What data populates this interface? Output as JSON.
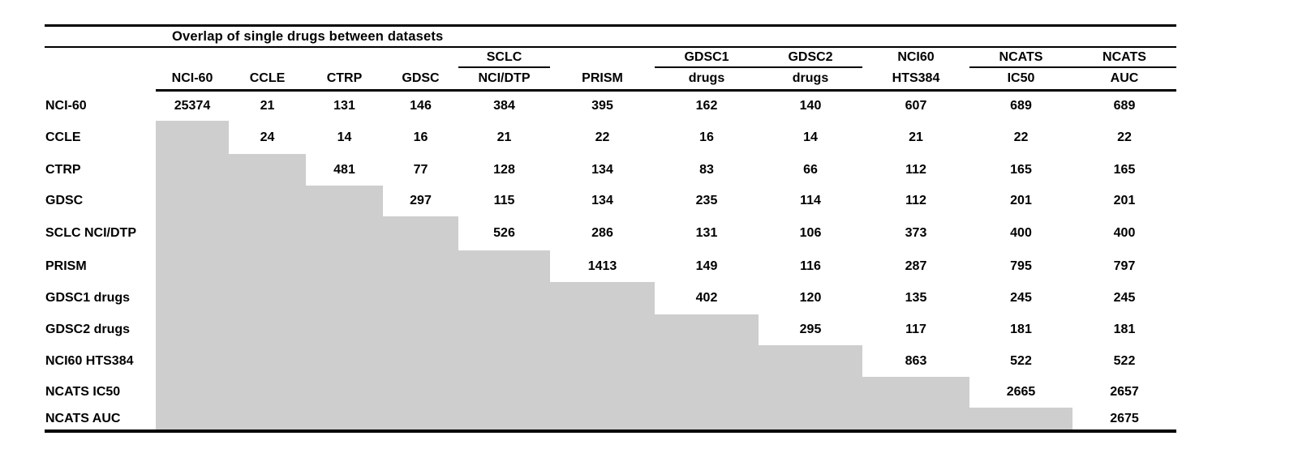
{
  "title": "Overlap of single drugs between datasets",
  "colors": {
    "shaded_cell": "#cfcecf",
    "line": "#000000",
    "text": "#000000",
    "background": "#ffffff"
  },
  "table": {
    "columns": [
      {
        "line1": "",
        "line2": "NCI-60"
      },
      {
        "line1": "",
        "line2": "CCLE"
      },
      {
        "line1": "",
        "line2": "CTRP"
      },
      {
        "line1": "",
        "line2": "GDSC"
      },
      {
        "line1": "SCLC",
        "line2": "NCI/DTP"
      },
      {
        "line1": "",
        "line2": "PRISM"
      },
      {
        "line1": "GDSC1",
        "line2": "drugs"
      },
      {
        "line1": "GDSC2",
        "line2": "drugs"
      },
      {
        "line1": "NCI60",
        "line2": "HTS384"
      },
      {
        "line1": "NCATS",
        "line2": "IC50"
      },
      {
        "line1": "NCATS",
        "line2": "AUC"
      }
    ],
    "group_underlines": [
      {
        "from": 4,
        "to": 4
      },
      {
        "from": 6,
        "to": 7
      },
      {
        "from": 9,
        "to": 10
      }
    ],
    "rows": [
      {
        "label": "NCI-60",
        "values": [
          "25374",
          "21",
          "131",
          "146",
          "384",
          "395",
          "162",
          "140",
          "607",
          "689",
          "689"
        ]
      },
      {
        "label": "CCLE",
        "values": [
          null,
          "24",
          "14",
          "16",
          "21",
          "22",
          "16",
          "14",
          "21",
          "22",
          "22"
        ]
      },
      {
        "label": "CTRP",
        "values": [
          null,
          null,
          "481",
          "77",
          "128",
          "134",
          "83",
          "66",
          "112",
          "165",
          "165"
        ]
      },
      {
        "label": "GDSC",
        "values": [
          null,
          null,
          null,
          "297",
          "115",
          "134",
          "235",
          "114",
          "112",
          "201",
          "201"
        ]
      },
      {
        "label": "SCLC NCI/DTP",
        "values": [
          null,
          null,
          null,
          null,
          "526",
          "286",
          "131",
          "106",
          "373",
          "400",
          "400"
        ]
      },
      {
        "label": "PRISM",
        "values": [
          null,
          null,
          null,
          null,
          null,
          "1413",
          "149",
          "116",
          "287",
          "795",
          "797"
        ]
      },
      {
        "label": "GDSC1 drugs",
        "values": [
          null,
          null,
          null,
          null,
          null,
          null,
          "402",
          "120",
          "135",
          "245",
          "245"
        ]
      },
      {
        "label": "GDSC2 drugs",
        "values": [
          null,
          null,
          null,
          null,
          null,
          null,
          null,
          "295",
          "117",
          "181",
          "181"
        ]
      },
      {
        "label": "NCI60 HTS384",
        "values": [
          null,
          null,
          null,
          null,
          null,
          null,
          null,
          null,
          "863",
          "522",
          "522"
        ]
      },
      {
        "label": "NCATS IC50",
        "values": [
          null,
          null,
          null,
          null,
          null,
          null,
          null,
          null,
          null,
          "2665",
          "2657"
        ]
      },
      {
        "label": "NCATS AUC",
        "values": [
          null,
          null,
          null,
          null,
          null,
          null,
          null,
          null,
          null,
          null,
          "2675"
        ]
      }
    ]
  },
  "chart_data": {
    "type": "table",
    "title": "Overlap of single drugs between datasets",
    "layout": "upper-triangular overlap matrix; lower triangle shaded gray",
    "column_labels": [
      "NCI-60",
      "CCLE",
      "CTRP",
      "GDSC",
      "SCLC NCI/DTP",
      "PRISM",
      "GDSC1 drugs",
      "GDSC2 drugs",
      "NCI60 HTS384",
      "NCATS IC50",
      "NCATS AUC"
    ],
    "row_labels": [
      "NCI-60",
      "CCLE",
      "CTRP",
      "GDSC",
      "SCLC NCI/DTP",
      "PRISM",
      "GDSC1 drugs",
      "GDSC2 drugs",
      "NCI60 HTS384",
      "NCATS IC50",
      "NCATS AUC"
    ],
    "matrix": [
      [
        25374,
        21,
        131,
        146,
        384,
        395,
        162,
        140,
        607,
        689,
        689
      ],
      [
        null,
        24,
        14,
        16,
        21,
        22,
        16,
        14,
        21,
        22,
        22
      ],
      [
        null,
        null,
        481,
        77,
        128,
        134,
        83,
        66,
        112,
        165,
        165
      ],
      [
        null,
        null,
        null,
        297,
        115,
        134,
        235,
        114,
        112,
        201,
        201
      ],
      [
        null,
        null,
        null,
        null,
        526,
        286,
        131,
        106,
        373,
        400,
        400
      ],
      [
        null,
        null,
        null,
        null,
        null,
        1413,
        149,
        116,
        287,
        795,
        797
      ],
      [
        null,
        null,
        null,
        null,
        null,
        null,
        402,
        120,
        135,
        245,
        245
      ],
      [
        null,
        null,
        null,
        null,
        null,
        null,
        null,
        295,
        117,
        181,
        181
      ],
      [
        null,
        null,
        null,
        null,
        null,
        null,
        null,
        null,
        863,
        522,
        522
      ],
      [
        null,
        null,
        null,
        null,
        null,
        null,
        null,
        null,
        null,
        2665,
        2657
      ],
      [
        null,
        null,
        null,
        null,
        null,
        null,
        null,
        null,
        null,
        null,
        2675
      ]
    ]
  }
}
